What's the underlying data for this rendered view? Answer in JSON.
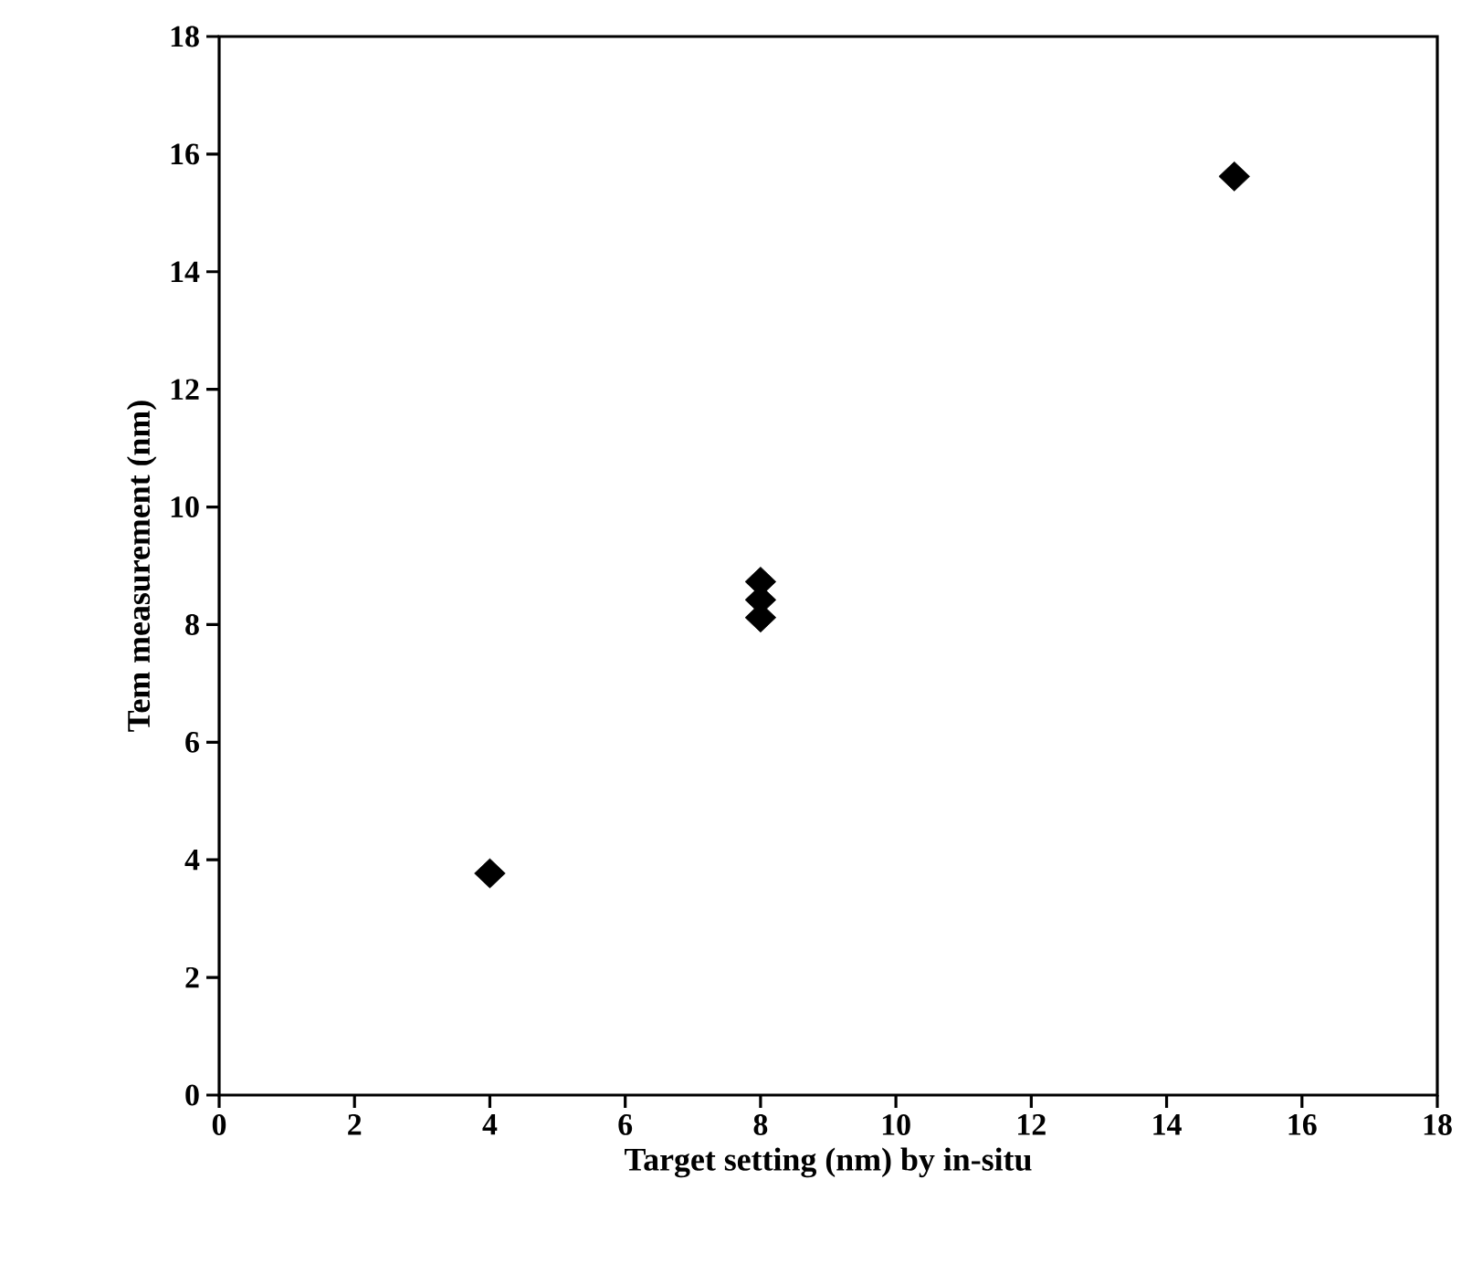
{
  "chart_data": {
    "type": "scatter",
    "xlabel": "Target setting  (nm) by in-situ",
    "ylabel": "Tem measurement (nm)",
    "x": [
      4,
      8,
      8,
      8,
      15
    ],
    "values": [
      3.77,
      8.12,
      8.42,
      8.73,
      15.62
    ],
    "color": "#000000",
    "marker": "diamond",
    "grid": false,
    "xlim": [
      0,
      18
    ],
    "ylim": [
      0,
      18
    ],
    "xticks": [
      0,
      2,
      4,
      6,
      8,
      10,
      12,
      14,
      16,
      18
    ],
    "yticks": [
      0,
      2,
      4,
      6,
      8,
      10,
      12,
      14,
      16,
      18
    ]
  }
}
